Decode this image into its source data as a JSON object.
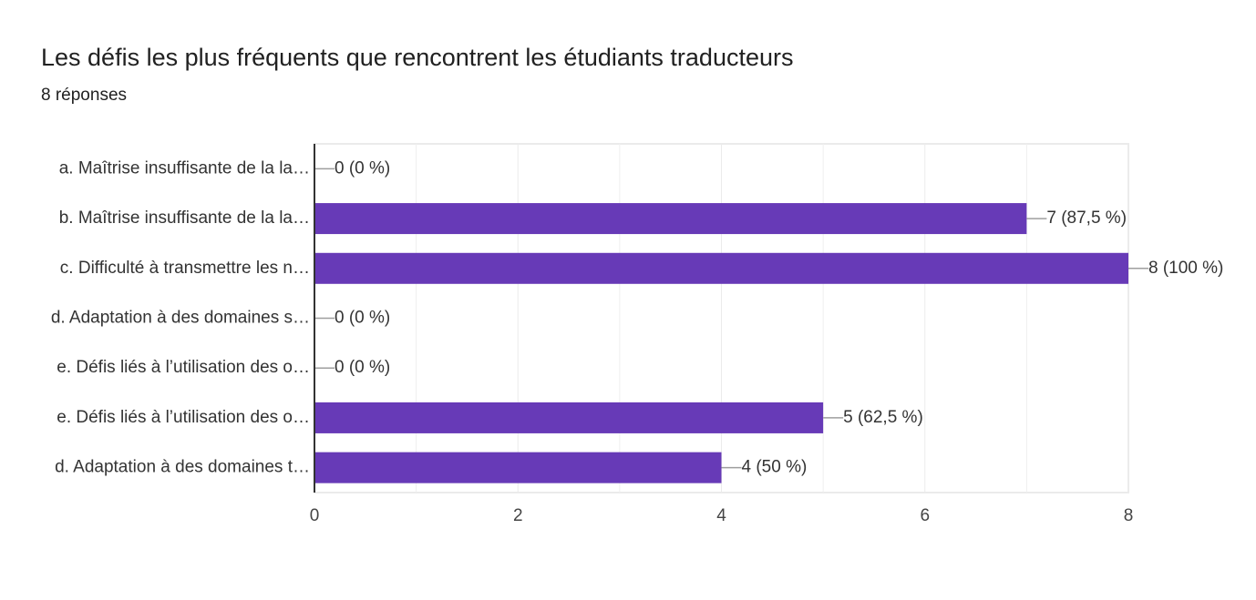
{
  "chart_data": {
    "type": "bar",
    "orientation": "horizontal",
    "title": "Les défis les plus fréquents que rencontrent les étudiants traducteurs",
    "subtitle": "8 réponses",
    "categories": [
      "a. Maîtrise insuffisante de la la…",
      "b. Maîtrise insuffisante de la la…",
      "c. Difficulté à transmettre les n…",
      "d. Adaptation à des domaines s…",
      "e. Défis liés à l’utilisation des o…",
      "e. Défis liés à l’utilisation des o…",
      "d. Adaptation à des domaines t…"
    ],
    "values": [
      0,
      7,
      8,
      0,
      0,
      5,
      4
    ],
    "value_labels": [
      "0 (0 %)",
      "7 (87,5 %)",
      "8 (100 %)",
      "0 (0 %)",
      "0 (0 %)",
      "5 (62,5 %)",
      "4 (50 %)"
    ],
    "color": "#673ab7",
    "xlim": [
      0,
      8
    ],
    "xticks": [
      0,
      2,
      4,
      6,
      8
    ],
    "xminorticks": [
      1,
      3,
      5,
      7
    ],
    "grid": true
  }
}
